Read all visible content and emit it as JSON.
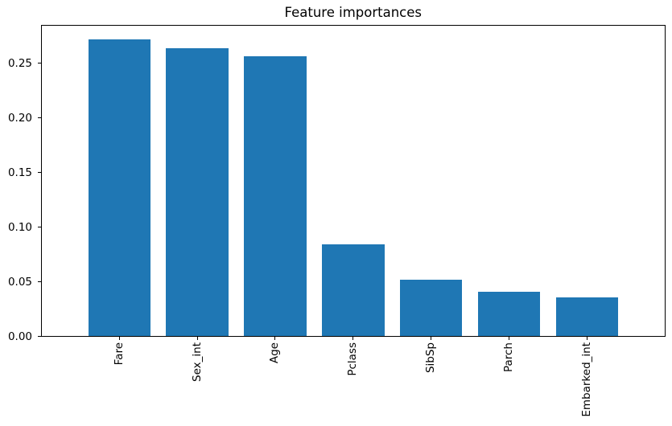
{
  "chart_data": {
    "type": "bar",
    "title": "Feature importances",
    "categories": [
      "Fare",
      "Sex_int",
      "Age",
      "Pclass",
      "SibSp",
      "Parch",
      "Embarked_int"
    ],
    "values": [
      0.272,
      0.264,
      0.256,
      0.084,
      0.052,
      0.041,
      0.036
    ],
    "xlabel": "",
    "ylabel": "",
    "ylim": [
      0,
      0.285
    ],
    "yticks": [
      0.0,
      0.05,
      0.1,
      0.15,
      0.2,
      0.25
    ],
    "ytick_labels": [
      "0.00",
      "0.05",
      "0.10",
      "0.15",
      "0.20",
      "0.25"
    ],
    "xtick_rotation": 90,
    "grid": false,
    "legend": null,
    "bar_color": "#1f77b4",
    "background_color": "#ffffff",
    "spine_color": "#000000"
  }
}
